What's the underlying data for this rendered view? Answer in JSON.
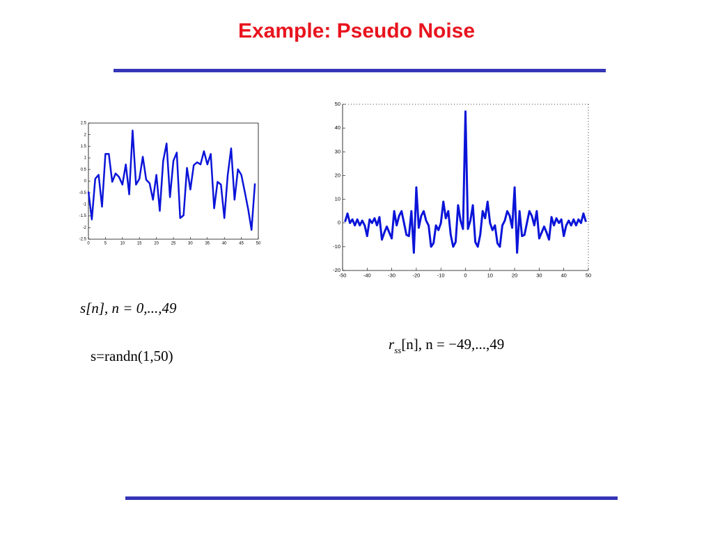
{
  "title": "Example: Pseudo Noise",
  "chart_data": [
    {
      "type": "line",
      "x": [
        0,
        1,
        2,
        3,
        4,
        5,
        6,
        7,
        8,
        9,
        10,
        11,
        12,
        13,
        14,
        15,
        16,
        17,
        18,
        19,
        20,
        21,
        22,
        23,
        24,
        25,
        26,
        27,
        28,
        29,
        30,
        31,
        32,
        33,
        34,
        35,
        36,
        37,
        38,
        39,
        40,
        41,
        42,
        43,
        44,
        45,
        46,
        47,
        48,
        49
      ],
      "series": [
        {
          "color": "#0a14d8",
          "values": [
            -0.45,
            -1.65,
            0.1,
            0.27,
            -1.1,
            1.17,
            1.17,
            -0.03,
            0.33,
            0.18,
            -0.15,
            0.72,
            -0.57,
            2.18,
            -0.15,
            0.1,
            1.05,
            0.06,
            -0.09,
            -0.8,
            0.27,
            -1.28,
            0.87,
            1.62,
            -0.69,
            0.87,
            1.23,
            -1.59,
            -1.47,
            0.57,
            -0.36,
            0.69,
            0.81,
            0.72,
            1.29,
            0.72,
            1.17,
            -1.17,
            -0.03,
            -0.15,
            -1.59,
            0.27,
            1.41,
            -0.8,
            0.51,
            0.27,
            -0.45,
            -1.2,
            -2.1,
            -0.1
          ]
        }
      ],
      "xlim": [
        0,
        50
      ],
      "ylim": [
        -2.5,
        2.5
      ],
      "xticks": [
        0,
        5,
        10,
        15,
        20,
        25,
        30,
        35,
        40,
        45,
        50
      ],
      "yticks": [
        -2.5,
        -2,
        -1.5,
        -1,
        -0.5,
        0,
        0.5,
        1,
        1.5,
        2,
        2.5
      ]
    },
    {
      "type": "line",
      "x": [
        -49,
        -48,
        -47,
        -46,
        -45,
        -44,
        -43,
        -42,
        -41,
        -40,
        -39,
        -38,
        -37,
        -36,
        -35,
        -34,
        -33,
        -32,
        -31,
        -30,
        -29,
        -28,
        -27,
        -26,
        -25,
        -24,
        -23,
        -22,
        -21,
        -20,
        -19,
        -18,
        -17,
        -16,
        -15,
        -14,
        -13,
        -12,
        -11,
        -10,
        -9,
        -8,
        -7,
        -6,
        -5,
        -4,
        -3,
        -2,
        -1,
        0,
        1,
        2,
        3,
        4,
        5,
        6,
        7,
        8,
        9,
        10,
        11,
        12,
        13,
        14,
        15,
        16,
        17,
        18,
        19,
        20,
        21,
        22,
        23,
        24,
        25,
        26,
        27,
        28,
        29,
        30,
        31,
        32,
        33,
        34,
        35,
        36,
        37,
        38,
        39,
        40,
        41,
        42,
        43,
        44,
        45,
        46,
        47,
        48,
        49
      ],
      "series": [
        {
          "color": "#0a14d8",
          "values": [
            0.5,
            4,
            0,
            1.5,
            -1,
            1.5,
            -1,
            1,
            -1,
            -5.5,
            1.5,
            0,
            2,
            -1,
            2.5,
            -7,
            -4,
            -1.5,
            -4,
            -6.5,
            5,
            -1,
            3,
            5,
            0,
            -5,
            -5.5,
            5,
            -12.5,
            15,
            -2,
            3,
            5,
            1,
            -1,
            -10,
            -8.5,
            -1,
            -3,
            0,
            9,
            2,
            5,
            -5,
            -10,
            -8,
            7.5,
            1,
            -2.5,
            47,
            -2.5,
            1,
            7.5,
            -8,
            -10,
            -5,
            5,
            2,
            9,
            0,
            -3,
            -1,
            -8.5,
            -10,
            -1,
            1,
            5,
            3,
            -2,
            15,
            -12.5,
            5,
            -5.5,
            -5,
            0,
            5,
            3,
            -1,
            5,
            -6.5,
            -4,
            -1.5,
            -4,
            -7,
            2.5,
            -1,
            2,
            0,
            1.5,
            -5.5,
            -1,
            1,
            -1,
            1.5,
            -1,
            1.5,
            0,
            4,
            0.5
          ]
        }
      ],
      "xlim": [
        -50,
        50
      ],
      "ylim": [
        -20,
        50
      ],
      "xticks": [
        -50,
        -40,
        -30,
        -20,
        -10,
        0,
        10,
        20,
        30,
        40,
        50
      ],
      "yticks": [
        -20,
        -10,
        0,
        10,
        20,
        30,
        40,
        50
      ]
    }
  ],
  "captions": {
    "signal": "s[n], n = 0,...,49",
    "code": "s=randn(1,50)",
    "autocorr": {
      "symbol": "r",
      "subscript": "ss",
      "rest": "[n], n = −49,...,49"
    }
  }
}
